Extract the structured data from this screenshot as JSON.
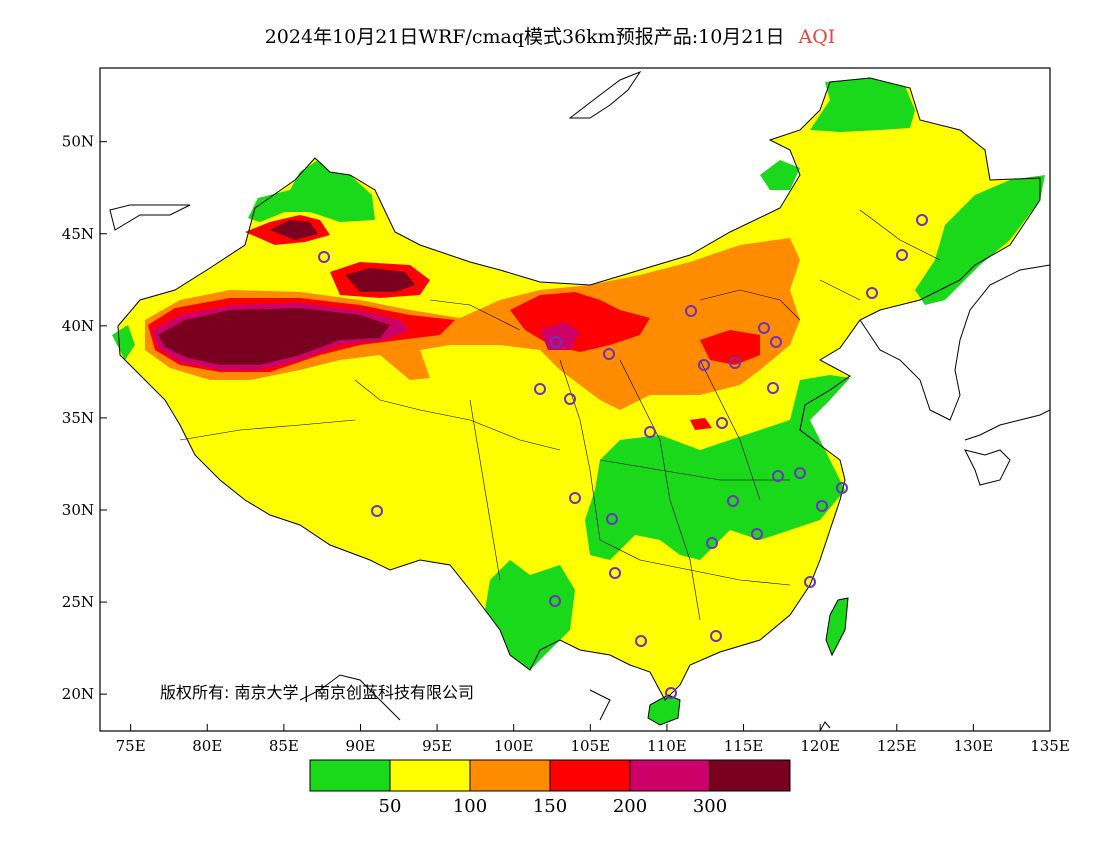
{
  "title": {
    "main": "2024年10月21日WRF/cmaq模式36km预报产品:10月21日",
    "variable": "AQI",
    "variable_color": "#e8433a"
  },
  "map": {
    "projection": "lat-lon",
    "lon_range": [
      73,
      135
    ],
    "lat_range": [
      18,
      54
    ],
    "lat_ticks": [
      {
        "value": 50,
        "label": "50N"
      },
      {
        "value": 45,
        "label": "45N"
      },
      {
        "value": 40,
        "label": "40N"
      },
      {
        "value": 35,
        "label": "35N"
      },
      {
        "value": 30,
        "label": "30N"
      },
      {
        "value": 25,
        "label": "25N"
      },
      {
        "value": 20,
        "label": "20N"
      }
    ],
    "lon_ticks": [
      {
        "value": 75,
        "label": "75E"
      },
      {
        "value": 80,
        "label": "80E"
      },
      {
        "value": 85,
        "label": "85E"
      },
      {
        "value": 90,
        "label": "90E"
      },
      {
        "value": 95,
        "label": "95E"
      },
      {
        "value": 100,
        "label": "100E"
      },
      {
        "value": 105,
        "label": "105E"
      },
      {
        "value": 110,
        "label": "110E"
      },
      {
        "value": 115,
        "label": "115E"
      },
      {
        "value": 120,
        "label": "120E"
      },
      {
        "value": 125,
        "label": "125E"
      },
      {
        "value": 130,
        "label": "130E"
      },
      {
        "value": 135,
        "label": "135E"
      }
    ],
    "copyright_text": "版权所有: 南京大学 | 南京创蓝科技有限公司",
    "station_marker_color": "#7030c0"
  },
  "legend": {
    "colors": [
      "#1ad81a",
      "#ffff00",
      "#ff8c00",
      "#ff0000",
      "#cc0066",
      "#7a0020"
    ],
    "labels": [
      "50",
      "100",
      "150",
      "200",
      "300"
    ]
  }
}
